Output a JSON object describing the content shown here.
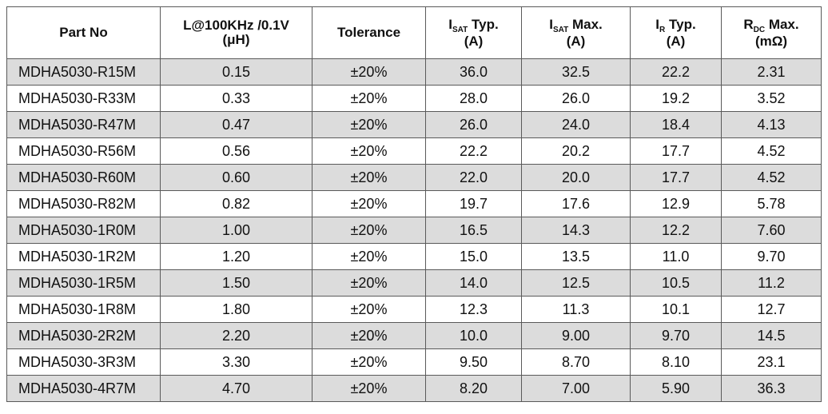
{
  "table": {
    "headers": [
      {
        "key": "part_no",
        "line1": "Part No",
        "line2": ""
      },
      {
        "key": "inductance",
        "line1": "L@100KHz /0.1V",
        "line2": "(μH)"
      },
      {
        "key": "tolerance",
        "line1": "Tolerance",
        "line2": ""
      },
      {
        "key": "isat_typ",
        "main": "I",
        "sub": "SAT",
        "rest": " Typ.",
        "line2": "(A)"
      },
      {
        "key": "isat_max",
        "main": "I",
        "sub": "SAT",
        "rest": " Max.",
        "line2": "(A)"
      },
      {
        "key": "ir_typ",
        "main": "I",
        "sub": "R",
        "rest": " Typ.",
        "line2": "(A)"
      },
      {
        "key": "rdc_max",
        "main": "R",
        "sub": "DC",
        "rest": " Max.",
        "line2": "(mΩ)"
      }
    ],
    "rows": [
      [
        "MDHA5030-R15M",
        "0.15",
        "±20%",
        "36.0",
        "32.5",
        "22.2",
        "2.31"
      ],
      [
        "MDHA5030-R33M",
        "0.33",
        "±20%",
        "28.0",
        "26.0",
        "19.2",
        "3.52"
      ],
      [
        "MDHA5030-R47M",
        "0.47",
        "±20%",
        "26.0",
        "24.0",
        "18.4",
        "4.13"
      ],
      [
        "MDHA5030-R56M",
        "0.56",
        "±20%",
        "22.2",
        "20.2",
        "17.7",
        "4.52"
      ],
      [
        "MDHA5030-R60M",
        "0.60",
        "±20%",
        "22.0",
        "20.0",
        "17.7",
        "4.52"
      ],
      [
        "MDHA5030-R82M",
        "0.82",
        "±20%",
        "19.7",
        "17.6",
        "12.9",
        "5.78"
      ],
      [
        "MDHA5030-1R0M",
        "1.00",
        "±20%",
        "16.5",
        "14.3",
        "12.2",
        "7.60"
      ],
      [
        "MDHA5030-1R2M",
        "1.20",
        "±20%",
        "15.0",
        "13.5",
        "11.0",
        "9.70"
      ],
      [
        "MDHA5030-1R5M",
        "1.50",
        "±20%",
        "14.0",
        "12.5",
        "10.5",
        "11.2"
      ],
      [
        "MDHA5030-1R8M",
        "1.80",
        "±20%",
        "12.3",
        "11.3",
        "10.1",
        "12.7"
      ],
      [
        "MDHA5030-2R2M",
        "2.20",
        "±20%",
        "10.0",
        "9.00",
        "9.70",
        "14.5"
      ],
      [
        "MDHA5030-3R3M",
        "3.30",
        "±20%",
        "9.50",
        "8.70",
        "8.10",
        "23.1"
      ],
      [
        "MDHA5030-4R7M",
        "4.70",
        "±20%",
        "8.20",
        "7.00",
        "5.90",
        "36.3"
      ]
    ],
    "row_shading": "alternating starting with first data row",
    "colors": {
      "shaded_row": "#dcdcdc",
      "border": "#5a5a5a",
      "text": "#111111"
    }
  }
}
